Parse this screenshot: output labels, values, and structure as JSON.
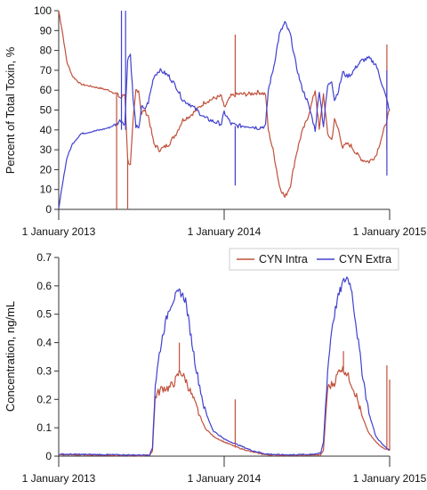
{
  "colors": {
    "intra": "#c0503a",
    "extra": "#4040d0"
  },
  "chart_data": [
    {
      "type": "line",
      "title": "",
      "xlabel": "",
      "ylabel": "Percent of Total Toxin, %",
      "x_unit": "months since 1 January 2013",
      "xlim": [
        0,
        24
      ],
      "ylim": [
        0,
        100
      ],
      "yticks": [
        0,
        10,
        20,
        30,
        40,
        50,
        60,
        70,
        80,
        90,
        100
      ],
      "xticks": [
        {
          "x": 0,
          "label": "1 January 2013"
        },
        {
          "x": 12,
          "label": "1 January 2014"
        },
        {
          "x": 24,
          "label": "1 January 2015"
        }
      ],
      "series": [
        {
          "name": "CYN Intra",
          "color": "intra",
          "x": [
            0,
            0.25,
            0.6,
            1,
            1.6,
            2.3,
            3,
            3.6,
            4.2,
            4.5,
            4.8,
            5.0,
            5.2,
            5.4,
            5.6,
            5.8,
            6.0,
            6.2,
            6.5,
            6.9,
            7.3,
            7.6,
            8.0,
            8.5,
            9.0,
            9.5,
            10.0,
            10.6,
            11.3,
            11.8,
            12.0,
            12.5,
            13.0,
            13.8,
            14.5,
            15.0,
            15.2,
            15.6,
            16.0,
            16.4,
            16.8,
            17.2,
            17.6,
            18.0,
            18.3,
            18.6,
            18.9,
            19.2,
            19.5,
            19.8,
            20.0,
            20.3,
            20.6,
            20.9,
            21.2,
            21.6,
            22.0,
            22.5,
            23.0,
            23.5,
            24.0
          ],
          "y": [
            100,
            90,
            74,
            67,
            63,
            62,
            61,
            60,
            58,
            56,
            58,
            25,
            22,
            45,
            60,
            60,
            48,
            50,
            47,
            33,
            30,
            31,
            33,
            38,
            45,
            47,
            50,
            54,
            56,
            57,
            51,
            57,
            58,
            58,
            59,
            58,
            40,
            28,
            12,
            6,
            12,
            27,
            38,
            45,
            52,
            60,
            40,
            58,
            38,
            35,
            45,
            40,
            31,
            33,
            32,
            28,
            25,
            24,
            27,
            38,
            50
          ]
        },
        {
          "name": "CYN Extra",
          "color": "extra",
          "x": [
            0,
            0.25,
            0.6,
            1,
            1.6,
            2.3,
            3,
            3.6,
            4.2,
            4.5,
            4.8,
            5.0,
            5.2,
            5.4,
            5.6,
            5.8,
            6.0,
            6.2,
            6.5,
            6.9,
            7.3,
            7.6,
            8.0,
            8.5,
            9.0,
            9.5,
            10.0,
            10.6,
            11.3,
            11.8,
            12.0,
            12.5,
            13.0,
            13.8,
            14.5,
            15.0,
            15.2,
            15.6,
            16.0,
            16.4,
            16.8,
            17.2,
            17.6,
            18.0,
            18.3,
            18.6,
            18.9,
            19.2,
            19.5,
            19.8,
            20.0,
            20.3,
            20.6,
            20.9,
            21.2,
            21.6,
            22.0,
            22.5,
            23.0,
            23.5,
            24.0
          ],
          "y": [
            0,
            12,
            26,
            33,
            38,
            39,
            40,
            41,
            43,
            45,
            43,
            76,
            78,
            55,
            42,
            40,
            52,
            50,
            54,
            67,
            70,
            69,
            67,
            62,
            55,
            53,
            50,
            46,
            44,
            43,
            49,
            43,
            42,
            42,
            41,
            42,
            60,
            72,
            88,
            94,
            88,
            73,
            62,
            55,
            48,
            40,
            60,
            42,
            62,
            65,
            55,
            60,
            69,
            67,
            68,
            72,
            75,
            76,
            73,
            62,
            50
          ]
        }
      ],
      "spikes": [
        {
          "series": "CYN Extra",
          "x": 4.55,
          "from": 40,
          "to": 100
        },
        {
          "series": "CYN Extra",
          "x": 4.85,
          "from": 40,
          "to": 100
        },
        {
          "series": "CYN Intra",
          "x": 4.2,
          "from": 58,
          "to": 0
        },
        {
          "series": "CYN Intra",
          "x": 5.0,
          "from": 25,
          "to": 0
        },
        {
          "series": "CYN Intra",
          "x": 12.8,
          "from": 58,
          "to": 88
        },
        {
          "series": "CYN Extra",
          "x": 12.8,
          "from": 42,
          "to": 12
        },
        {
          "series": "CYN Intra",
          "x": 23.8,
          "from": 30,
          "to": 83
        },
        {
          "series": "CYN Extra",
          "x": 23.8,
          "from": 70,
          "to": 17
        }
      ]
    },
    {
      "type": "line",
      "title": "",
      "xlabel": "",
      "ylabel": "Concentration, ng/mL",
      "x_unit": "months since 1 January 2013",
      "xlim": [
        0,
        24
      ],
      "ylim": [
        0,
        0.7
      ],
      "yticks": [
        0,
        0.1,
        0.2,
        0.3,
        0.4,
        0.5,
        0.6,
        0.7
      ],
      "xticks": [
        {
          "x": 0,
          "label": "1 January 2013"
        },
        {
          "x": 12,
          "label": "1 January 2014"
        },
        {
          "x": 24,
          "label": "1 January 2015"
        }
      ],
      "legend": {
        "placement": "top-right"
      },
      "series": [
        {
          "name": "CYN Intra",
          "color": "intra",
          "x": [
            0,
            2,
            4,
            5.5,
            6.0,
            6.6,
            6.8,
            7.0,
            7.5,
            8.0,
            8.4,
            8.8,
            9.2,
            9.6,
            10.0,
            10.6,
            11.2,
            12.0,
            13.0,
            14.0,
            15.0,
            16.0,
            16.5,
            17.0,
            18.0,
            19.0,
            19.2,
            19.5,
            20.0,
            20.4,
            20.8,
            21.2,
            21.6,
            22.0,
            22.5,
            23.0,
            23.5,
            24.0
          ],
          "y": [
            0.005,
            0.004,
            0.003,
            0.002,
            0.002,
            0.003,
            0.02,
            0.21,
            0.24,
            0.24,
            0.26,
            0.3,
            0.27,
            0.22,
            0.17,
            0.1,
            0.07,
            0.05,
            0.03,
            0.015,
            0.005,
            0.003,
            0.003,
            0.003,
            0.003,
            0.005,
            0.02,
            0.24,
            0.26,
            0.31,
            0.3,
            0.26,
            0.21,
            0.14,
            0.08,
            0.05,
            0.03,
            0.02
          ]
        },
        {
          "name": "CYN Extra",
          "color": "extra",
          "x": [
            0,
            2,
            4,
            5.5,
            6.0,
            6.6,
            6.8,
            7.0,
            7.3,
            7.6,
            8.0,
            8.4,
            8.8,
            9.2,
            9.6,
            10.0,
            10.6,
            11.2,
            12.0,
            13.0,
            14.0,
            15.0,
            16.0,
            16.5,
            17.0,
            18.0,
            19.0,
            19.2,
            19.5,
            19.8,
            20.2,
            20.6,
            20.9,
            21.2,
            21.6,
            22.0,
            22.5,
            23.0,
            23.5,
            24.0
          ],
          "y": [
            0.007,
            0.006,
            0.005,
            0.004,
            0.004,
            0.005,
            0.03,
            0.25,
            0.36,
            0.44,
            0.52,
            0.56,
            0.58,
            0.55,
            0.42,
            0.3,
            0.16,
            0.09,
            0.06,
            0.04,
            0.02,
            0.008,
            0.005,
            0.005,
            0.005,
            0.006,
            0.01,
            0.05,
            0.3,
            0.45,
            0.55,
            0.61,
            0.63,
            0.6,
            0.45,
            0.3,
            0.15,
            0.07,
            0.04,
            0.02
          ]
        }
      ],
      "spikes": [
        {
          "series": "CYN Intra",
          "x": 8.75,
          "from": 0.3,
          "to": 0.4
        },
        {
          "series": "CYN Intra",
          "x": 12.8,
          "from": 0.03,
          "to": 0.2
        },
        {
          "series": "CYN Intra",
          "x": 20.65,
          "from": 0.3,
          "to": 0.37
        },
        {
          "series": "CYN Intra",
          "x": 23.8,
          "from": 0.03,
          "to": 0.32
        },
        {
          "series": "CYN Intra",
          "x": 24.0,
          "from": 0.02,
          "to": 0.27
        }
      ]
    }
  ]
}
